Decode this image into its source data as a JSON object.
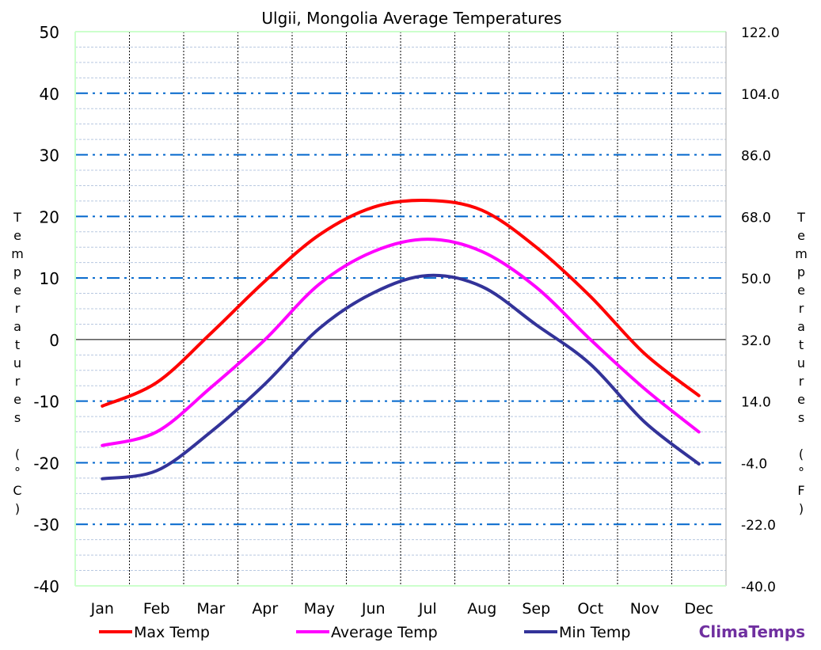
{
  "chart_data": {
    "type": "line",
    "title": "Ulgii, Mongolia Average Temperatures",
    "ylabel_left": "Temperatures (°C)",
    "ylabel_right": "Temperatures (°F)",
    "categories": [
      "Jan",
      "Feb",
      "Mar",
      "Apr",
      "May",
      "Jun",
      "Jul",
      "Aug",
      "Sep",
      "Oct",
      "Nov",
      "Dec"
    ],
    "ylim": [
      -40,
      50
    ],
    "yticks_left": [
      "50",
      "40",
      "30",
      "20",
      "10",
      "0",
      "-10",
      "-20",
      "-30",
      "-40"
    ],
    "yticks_right": [
      "122.0",
      "104.0",
      "86.0",
      "68.0",
      "50.0",
      "32.0",
      "14.0",
      "-4.0",
      "-22.0",
      "-40.0"
    ],
    "grid": true,
    "legend_placement": "bottom",
    "series": [
      {
        "name": "Max Temp",
        "color": "#ff0000",
        "values": [
          -10.8,
          -7,
          1,
          9.5,
          17,
          21.5,
          22.6,
          21,
          15,
          7,
          -2.3,
          -9.1
        ]
      },
      {
        "name": "Average Temp",
        "color": "#ff00ff",
        "values": [
          -17.2,
          -15,
          -7.8,
          0,
          9,
          14.3,
          16.3,
          14.3,
          8.5,
          0,
          -8,
          -15
        ]
      },
      {
        "name": "Min Temp",
        "color": "#333399",
        "values": [
          -22.6,
          -21.3,
          -15,
          -7.2,
          1.8,
          7.6,
          10.4,
          8.6,
          2.4,
          -4,
          -13.4,
          -20.2
        ]
      }
    ]
  },
  "brand": {
    "text": "ClimaTemps",
    "color": "#7030a0"
  }
}
